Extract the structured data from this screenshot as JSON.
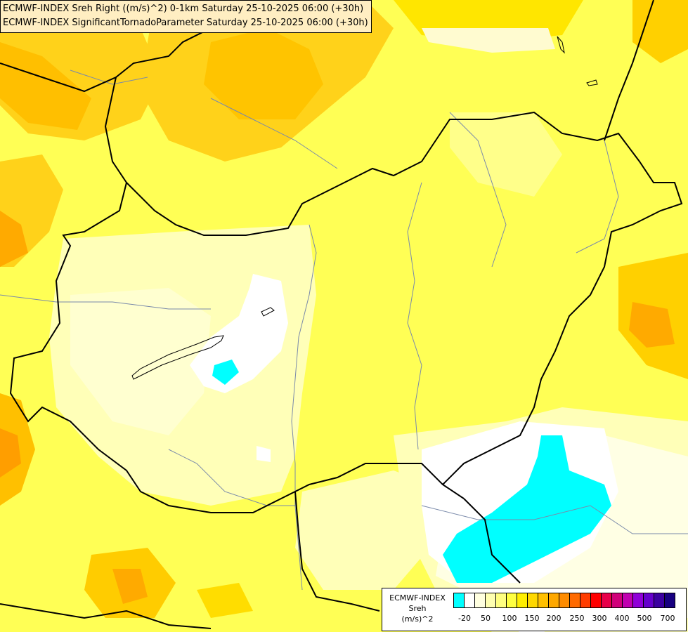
{
  "titles": {
    "line1": "ECMWF-INDEX Sreh Right ((m/s)^2) 0-1km Saturday 25-10-2025 06:00 (+30h)",
    "line2": "ECMWF-INDEX SignificantTornadoParameter Saturday 25-10-2025 06:00 (+30h)"
  },
  "legend": {
    "source": "ECMWF-INDEX",
    "variable": "Sreh",
    "unit": "(m/s)^2",
    "colors": [
      "#00ffff",
      "#ffffff",
      "#ffffe0",
      "#ffffb0",
      "#ffff80",
      "#ffff40",
      "#ffee00",
      "#ffd800",
      "#ffc000",
      "#ffa800",
      "#ff8c00",
      "#ff6a00",
      "#ff3c00",
      "#ff0000",
      "#e8004a",
      "#d0007a",
      "#c000b0",
      "#9000d8",
      "#6600cc",
      "#3c00a0",
      "#180080"
    ],
    "ticks": [
      "-20",
      "50",
      "100",
      "150",
      "200",
      "250",
      "300",
      "400",
      "500",
      "700"
    ]
  },
  "icons": {
    "map": "sreh-contour-map"
  }
}
